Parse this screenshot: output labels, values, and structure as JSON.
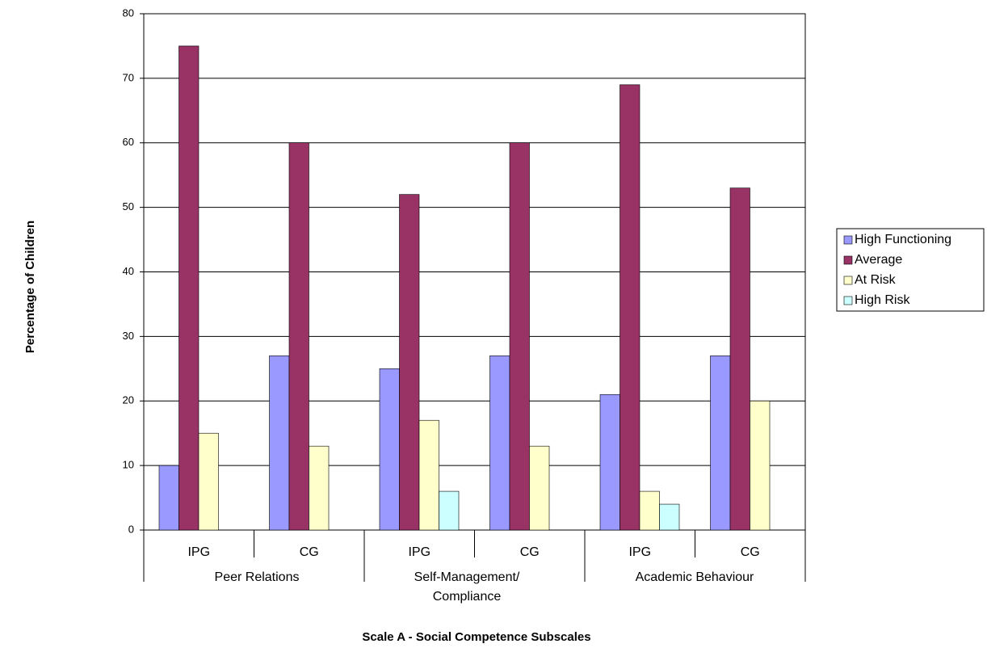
{
  "chart_data": {
    "type": "bar",
    "y_label": "Percentage of Children",
    "x_label": "Scale A - Social Competence Subscales",
    "categories": [
      "IPG",
      "CG",
      "IPG",
      "CG",
      "IPG",
      "CG"
    ],
    "groups": [
      {
        "lines": [
          "Peer Relations"
        ]
      },
      {
        "lines": [
          "Self-Management/",
          "Compliance"
        ]
      },
      {
        "lines": [
          "Academic Behaviour"
        ]
      }
    ],
    "series": [
      {
        "name": "High Functioning",
        "color": "#9999ff",
        "values": [
          10,
          27,
          25,
          27,
          21,
          27
        ]
      },
      {
        "name": "Average",
        "color": "#993366",
        "values": [
          75,
          60,
          52,
          60,
          69,
          53
        ]
      },
      {
        "name": "At Risk",
        "color": "#ffffcc",
        "values": [
          15,
          13,
          17,
          13,
          6,
          20
        ]
      },
      {
        "name": "High Risk",
        "color": "#ccffff",
        "values": [
          null,
          null,
          6,
          null,
          4,
          null
        ]
      }
    ],
    "ylim": [
      0,
      80
    ],
    "yticks": [
      0,
      10,
      20,
      30,
      40,
      50,
      60,
      70,
      80
    ],
    "grid": true,
    "legend": "right"
  }
}
